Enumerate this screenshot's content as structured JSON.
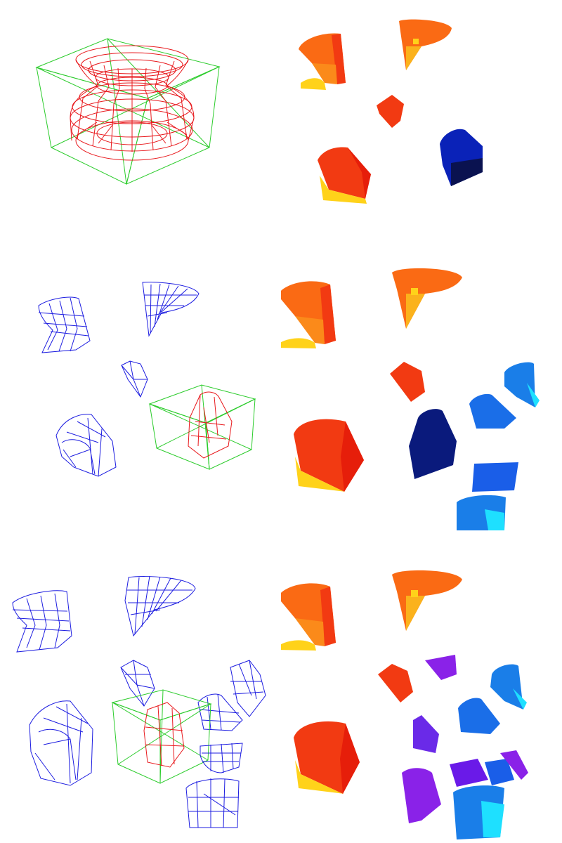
{
  "figure": {
    "rows": [
      {
        "row": 1,
        "wireframe_view": "single-vase-with-bounding-box",
        "shaded_view": "five-fragments"
      },
      {
        "row": 2,
        "wireframe_view": "four-fragments-plus-boxed-fragment",
        "shaded_view": "nine-fragments"
      },
      {
        "row": 3,
        "wireframe_view": "many-fragments-plus-boxed-fragment",
        "shaded_view": "thirteen-fragments"
      }
    ],
    "colors": {
      "wire_object": "#e8181c",
      "wire_fragments": "#1c1ce0",
      "wire_bbox": "#2ccc2c",
      "shade_red": "#f23a12",
      "shade_orange": "#fa6a14",
      "shade_yellow": "#ffd21a",
      "shade_navy": "#0a1a7c",
      "shade_blue": "#1a5ee8",
      "shade_cyan": "#1ee0ff",
      "shade_violet": "#8a22e8"
    }
  }
}
